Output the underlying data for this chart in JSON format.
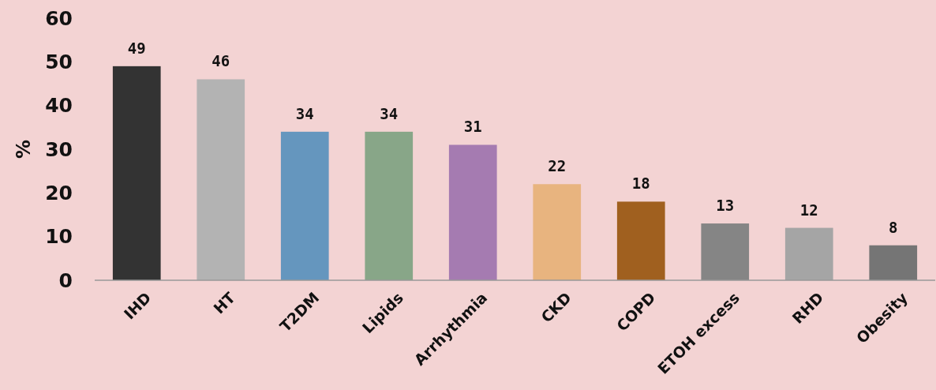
{
  "chart_data": {
    "type": "bar",
    "ylabel": "%",
    "categories": [
      "IHD",
      "HT",
      "T2DM",
      "Lipids",
      "Arrhythmia",
      "CKD",
      "COPD",
      "ETOH excess",
      "RHD",
      "Obesity"
    ],
    "values": [
      49,
      46,
      34,
      34,
      31,
      22,
      18,
      13,
      12,
      8
    ],
    "colors": [
      "#333333",
      "#b3b3b3",
      "#6596be",
      "#88a688",
      "#a57bb1",
      "#e8b47f",
      "#a0601f",
      "#858585",
      "#a5a5a5",
      "#757575"
    ],
    "ylim": [
      0,
      60
    ],
    "yticks": [
      0,
      10,
      20,
      30,
      40,
      50,
      60
    ],
    "data_labels": true
  }
}
